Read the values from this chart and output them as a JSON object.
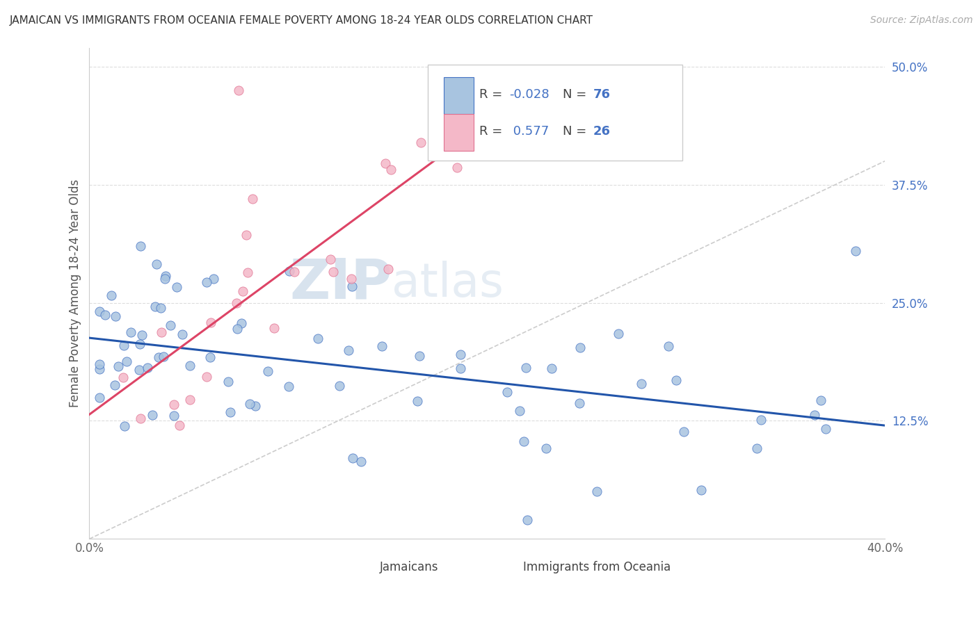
{
  "title": "JAMAICAN VS IMMIGRANTS FROM OCEANIA FEMALE POVERTY AMONG 18-24 YEAR OLDS CORRELATION CHART",
  "source": "Source: ZipAtlas.com",
  "ylabel": "Female Poverty Among 18-24 Year Olds",
  "xlim": [
    0.0,
    0.4
  ],
  "ylim": [
    0.0,
    0.52
  ],
  "r_jamaican": -0.028,
  "n_jamaican": 76,
  "r_oceania": 0.577,
  "n_oceania": 26,
  "blue_fill": "#a8c4e0",
  "pink_fill": "#f4b8c8",
  "blue_edge": "#4472c4",
  "pink_edge": "#e07090",
  "blue_line": "#2255aa",
  "pink_line": "#dd4466",
  "diagonal_color": "#cccccc",
  "grid_color": "#dddddd",
  "ytick_color": "#4472c4",
  "xtick_color": "#666666",
  "ylabel_color": "#555555",
  "title_color": "#333333",
  "source_color": "#aaaaaa",
  "watermark_color": "#ccd8e8"
}
